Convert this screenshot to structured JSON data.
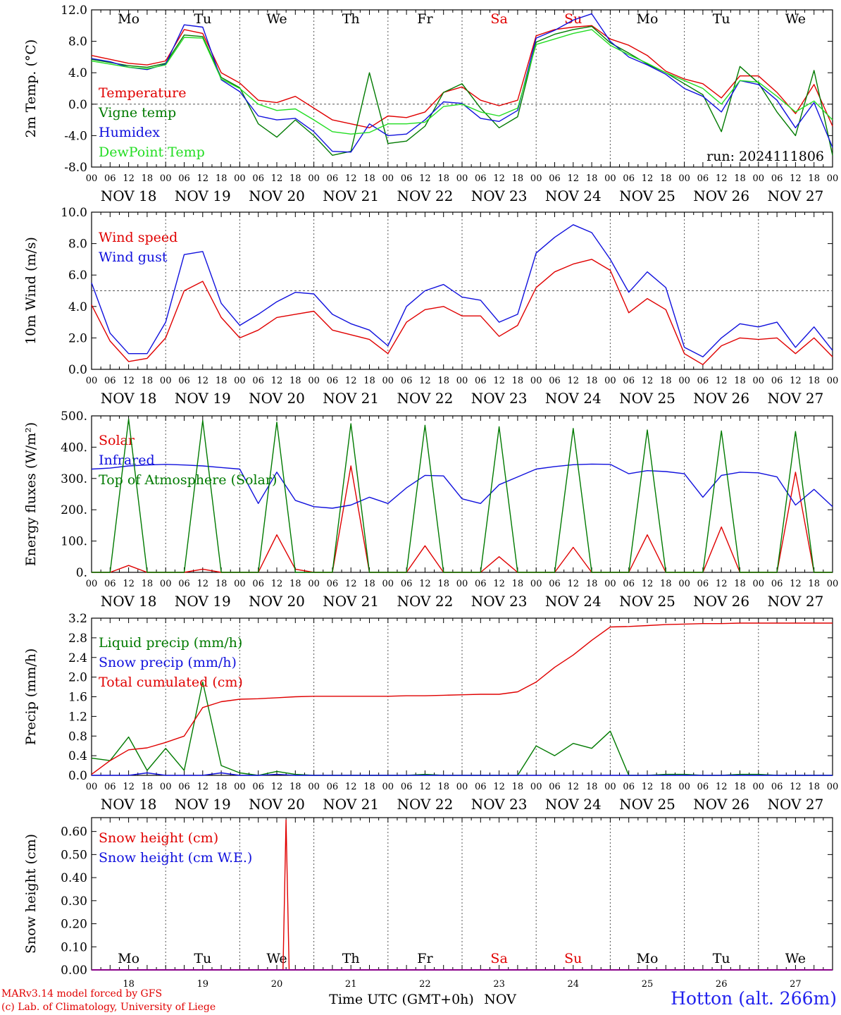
{
  "run_label": "run: 2024111806",
  "footer": {
    "model_line": "MARv3.14 model forced by GFS",
    "lab_line": "(c) Lab. of Climatology, University of Liege",
    "time_axis_label": "Time UTC (GMT+0h)",
    "month_label": "NOV",
    "station": "Hotton (alt. 266m)"
  },
  "days": [
    {
      "weekday": "Mo",
      "date_label": "NOV 18",
      "day_number": "18",
      "weekend": false
    },
    {
      "weekday": "Tu",
      "date_label": "NOV 19",
      "day_number": "19",
      "weekend": false
    },
    {
      "weekday": "We",
      "date_label": "NOV 20",
      "day_number": "20",
      "weekend": false
    },
    {
      "weekday": "Th",
      "date_label": "NOV 21",
      "day_number": "21",
      "weekend": false
    },
    {
      "weekday": "Fr",
      "date_label": "NOV 22",
      "day_number": "22",
      "weekend": false
    },
    {
      "weekday": "Sa",
      "date_label": "NOV 23",
      "day_number": "23",
      "weekend": true
    },
    {
      "weekday": "Su",
      "date_label": "NOV 24",
      "day_number": "24",
      "weekend": true
    },
    {
      "weekday": "Mo",
      "date_label": "NOV 25",
      "day_number": "25",
      "weekend": false
    },
    {
      "weekday": "Tu",
      "date_label": "NOV 26",
      "day_number": "26",
      "weekend": false
    },
    {
      "weekday": "We",
      "date_label": "NOV 27",
      "day_number": "27",
      "weekend": false
    }
  ],
  "hour_ticks": [
    "00",
    "06",
    "12",
    "18"
  ],
  "final_hour_tick": "00",
  "colors": {
    "red": "#e00000",
    "green": "#007a00",
    "blue": "#1010dd",
    "lightgreen": "#22dd22",
    "purple": "#8a008a",
    "grid": "#555555"
  },
  "chart_data": [
    {
      "type": "line",
      "ylabel": "2m Temp. (°C)",
      "ylim": [
        -8,
        12
      ],
      "yticks": [
        "12.0",
        "8.0",
        "4.0",
        "0.0",
        "-4.0",
        "-8.0"
      ],
      "ytick_values": [
        12,
        8,
        4,
        0,
        -4,
        -8
      ],
      "reference_line": 0,
      "show_weekdays": true,
      "x": [
        0,
        6,
        12,
        18,
        24,
        30,
        36,
        42,
        48,
        54,
        60,
        66,
        72,
        78,
        84,
        90,
        96,
        102,
        108,
        114,
        120,
        126,
        132,
        138,
        144,
        150,
        156,
        162,
        168,
        174,
        180,
        186,
        192,
        198,
        204,
        210,
        216,
        222,
        228,
        234,
        240
      ],
      "series": [
        {
          "name": "Temperature",
          "color": "#e00000",
          "values": [
            6.2,
            5.7,
            5.2,
            5.0,
            5.5,
            9.5,
            9.0,
            4.0,
            2.7,
            0.5,
            0.2,
            1.0,
            -0.5,
            -2.0,
            -2.5,
            -3.0,
            -1.5,
            -1.7,
            -1.0,
            1.5,
            2.2,
            0.5,
            -0.2,
            0.5,
            8.7,
            9.5,
            9.8,
            10.0,
            8.3,
            7.5,
            6.2,
            4.2,
            3.2,
            2.6,
            0.8,
            3.6,
            3.6,
            1.5,
            -1.2,
            2.5,
            -2.8
          ]
        },
        {
          "name": "Vigne temp",
          "color": "#007a00",
          "values": [
            5.7,
            5.3,
            4.9,
            4.7,
            5.2,
            8.8,
            8.6,
            3.4,
            2.1,
            -2.5,
            -4.2,
            -2.0,
            -4.0,
            -6.5,
            -6.0,
            4.0,
            -5.0,
            -4.7,
            -2.8,
            1.5,
            2.6,
            -0.5,
            -3.0,
            -1.6,
            7.9,
            8.9,
            9.5,
            9.9,
            7.8,
            6.5,
            5.1,
            4.0,
            2.6,
            1.2,
            -3.5,
            4.8,
            2.7,
            -1.0,
            -4.0,
            4.3,
            -6.5
          ]
        },
        {
          "name": "Humidex",
          "color": "#1010dd",
          "values": [
            5.8,
            5.4,
            4.7,
            4.4,
            5.1,
            10.1,
            9.8,
            3.1,
            1.6,
            -1.5,
            -2.0,
            -1.8,
            -3.5,
            -6.0,
            -6.1,
            -2.5,
            -4.0,
            -3.8,
            -2.0,
            0.3,
            0.1,
            -1.8,
            -2.2,
            -0.8,
            8.4,
            9.4,
            10.7,
            11.5,
            8.0,
            6.0,
            5.0,
            3.8,
            2.0,
            1.0,
            -1.0,
            3.0,
            2.5,
            0.5,
            -3.0,
            0.2,
            -5.5
          ]
        },
        {
          "name": "DewPoint Temp",
          "color": "#22dd22",
          "values": [
            5.5,
            5.1,
            4.7,
            4.5,
            5.0,
            8.5,
            8.4,
            3.2,
            2.0,
            0.0,
            -0.8,
            -0.6,
            -2.0,
            -3.5,
            -3.8,
            -3.6,
            -2.5,
            -2.5,
            -2.3,
            -0.3,
            0.0,
            -1.0,
            -1.5,
            -0.5,
            7.6,
            8.3,
            9.0,
            9.5,
            7.5,
            6.3,
            5.2,
            4.0,
            3.0,
            2.0,
            0.0,
            3.0,
            2.8,
            1.0,
            -1.0,
            0.4,
            -2.0
          ]
        }
      ]
    },
    {
      "type": "line",
      "ylabel": "10m Wind (m/s)",
      "ylim": [
        0,
        10
      ],
      "yticks": [
        "10.0",
        "8.0",
        "6.0",
        "4.0",
        "2.0",
        "0.0"
      ],
      "ytick_values": [
        10,
        8,
        6,
        4,
        2,
        0
      ],
      "reference_line": 5,
      "show_weekdays": false,
      "x": [
        0,
        6,
        12,
        18,
        24,
        30,
        36,
        42,
        48,
        54,
        60,
        66,
        72,
        78,
        84,
        90,
        96,
        102,
        108,
        114,
        120,
        126,
        132,
        138,
        144,
        150,
        156,
        162,
        168,
        174,
        180,
        186,
        192,
        198,
        204,
        210,
        216,
        222,
        228,
        234,
        240
      ],
      "series": [
        {
          "name": "Wind speed",
          "color": "#e00000",
          "values": [
            4.1,
            1.8,
            0.5,
            0.7,
            2.0,
            5.0,
            5.6,
            3.3,
            2.0,
            2.5,
            3.3,
            3.5,
            3.7,
            2.5,
            2.2,
            1.9,
            1.0,
            3.0,
            3.8,
            4.0,
            3.4,
            3.4,
            2.1,
            2.8,
            5.2,
            6.2,
            6.7,
            7.0,
            6.3,
            3.6,
            4.5,
            3.8,
            1.0,
            0.3,
            1.5,
            2.0,
            1.9,
            2.0,
            1.0,
            2.0,
            0.8
          ]
        },
        {
          "name": "Wind gust",
          "color": "#1010dd",
          "values": [
            5.5,
            2.3,
            1.0,
            1.0,
            3.0,
            7.3,
            7.5,
            4.2,
            2.8,
            3.5,
            4.3,
            4.9,
            4.8,
            3.5,
            2.9,
            2.5,
            1.5,
            4.0,
            5.0,
            5.4,
            4.6,
            4.4,
            3.0,
            3.5,
            7.4,
            8.4,
            9.2,
            8.7,
            7.0,
            4.9,
            6.2,
            5.2,
            1.4,
            0.8,
            2.0,
            2.9,
            2.7,
            3.0,
            1.4,
            2.7,
            1.2
          ]
        }
      ]
    },
    {
      "type": "line",
      "ylabel": "Energy fluxes (W/m²)",
      "ylim": [
        0,
        500
      ],
      "yticks": [
        "500.",
        "400.",
        "300.",
        "200.",
        "100.",
        "0."
      ],
      "ytick_values": [
        500,
        400,
        300,
        200,
        100,
        0
      ],
      "reference_line": null,
      "show_weekdays": false,
      "x": [
        0,
        6,
        12,
        18,
        24,
        30,
        36,
        42,
        48,
        54,
        60,
        66,
        72,
        78,
        84,
        90,
        96,
        102,
        108,
        114,
        120,
        126,
        132,
        138,
        144,
        150,
        156,
        162,
        168,
        174,
        180,
        186,
        192,
        198,
        204,
        210,
        216,
        222,
        228,
        234,
        240
      ],
      "series": [
        {
          "name": "Solar",
          "color": "#e00000",
          "values": [
            0,
            0,
            22,
            0,
            0,
            0,
            10,
            0,
            0,
            0,
            120,
            10,
            0,
            0,
            340,
            0,
            0,
            0,
            85,
            0,
            0,
            0,
            50,
            0,
            0,
            0,
            80,
            0,
            0,
            0,
            120,
            0,
            0,
            0,
            145,
            0,
            0,
            0,
            320,
            0,
            0
          ]
        },
        {
          "name": "Infrared",
          "color": "#1010dd",
          "values": [
            330,
            333,
            340,
            343,
            345,
            343,
            340,
            335,
            330,
            220,
            320,
            230,
            210,
            205,
            215,
            240,
            220,
            270,
            310,
            308,
            235,
            220,
            280,
            305,
            330,
            338,
            344,
            346,
            345,
            315,
            325,
            322,
            315,
            240,
            310,
            320,
            318,
            305,
            215,
            265,
            210
          ]
        },
        {
          "name": "Top of Atmosphere (Solar)",
          "color": "#007a00",
          "values": [
            0,
            0,
            490,
            0,
            0,
            0,
            485,
            0,
            0,
            0,
            480,
            0,
            0,
            0,
            475,
            0,
            0,
            0,
            470,
            0,
            0,
            0,
            465,
            0,
            0,
            0,
            460,
            0,
            0,
            0,
            455,
            0,
            0,
            0,
            452,
            0,
            0,
            0,
            450,
            0,
            0
          ]
        }
      ]
    },
    {
      "type": "line",
      "ylabel": "Precip (mm/h)",
      "ylim": [
        0,
        3.2
      ],
      "yticks": [
        "3.2",
        "2.8",
        "2.4",
        "2.0",
        "1.6",
        "1.2",
        "0.8",
        "0.4",
        "0.0"
      ],
      "ytick_values": [
        3.2,
        2.8,
        2.4,
        2.0,
        1.6,
        1.2,
        0.8,
        0.4,
        0.0
      ],
      "reference_line": null,
      "show_weekdays": false,
      "x": [
        0,
        6,
        12,
        18,
        24,
        30,
        36,
        42,
        48,
        54,
        60,
        66,
        72,
        78,
        84,
        90,
        96,
        102,
        108,
        114,
        120,
        126,
        132,
        138,
        144,
        150,
        156,
        162,
        168,
        174,
        180,
        186,
        192,
        198,
        204,
        210,
        216,
        222,
        228,
        234,
        240
      ],
      "series": [
        {
          "name": "Liquid precip (mm/h)",
          "color": "#007a00",
          "values": [
            0.35,
            0.3,
            0.78,
            0.1,
            0.55,
            0.1,
            1.9,
            0.2,
            0.05,
            0.0,
            0.08,
            0.02,
            0.0,
            0.0,
            0.0,
            0.0,
            0.0,
            0.0,
            0.02,
            0.0,
            0.0,
            0.0,
            0.0,
            0.0,
            0.6,
            0.4,
            0.65,
            0.55,
            0.9,
            0.0,
            0.0,
            0.02,
            0.02,
            0.0,
            0.0,
            0.02,
            0.02,
            0.0,
            0.0,
            0.0,
            0.0
          ]
        },
        {
          "name": "Snow precip (mm/h)",
          "color": "#1010dd",
          "values": [
            0,
            0,
            0,
            0.05,
            0,
            0,
            0,
            0.05,
            0,
            0,
            0.02,
            0,
            0,
            0,
            0,
            0,
            0,
            0,
            0,
            0,
            0,
            0,
            0,
            0,
            0,
            0,
            0,
            0,
            0,
            0,
            0,
            0,
            0,
            0,
            0,
            0,
            0,
            0,
            0,
            0,
            0
          ]
        },
        {
          "name": "Total cumulated (cm)",
          "color": "#e00000",
          "values": [
            0.02,
            0.3,
            0.52,
            0.56,
            0.67,
            0.8,
            1.38,
            1.5,
            1.55,
            1.56,
            1.58,
            1.6,
            1.61,
            1.61,
            1.61,
            1.61,
            1.61,
            1.62,
            1.62,
            1.63,
            1.64,
            1.65,
            1.65,
            1.7,
            1.9,
            2.2,
            2.45,
            2.75,
            3.02,
            3.03,
            3.05,
            3.07,
            3.08,
            3.09,
            3.09,
            3.1,
            3.1,
            3.1,
            3.1,
            3.1,
            3.1
          ]
        }
      ]
    },
    {
      "type": "line",
      "ylabel": "Snow height (cm)",
      "ylim": [
        0,
        0.66
      ],
      "yticks": [
        "0.60",
        "0.50",
        "0.40",
        "0.30",
        "0.20",
        "0.10",
        "0.00"
      ],
      "ytick_values": [
        0.6,
        0.5,
        0.4,
        0.3,
        0.2,
        0.1,
        0.0
      ],
      "reference_line": null,
      "show_weekdays": true,
      "x": [
        0,
        24,
        48,
        62,
        63,
        64,
        72,
        96,
        120,
        144,
        168,
        192,
        216,
        240
      ],
      "series": [
        {
          "name": "Snow height (cm)",
          "color": "#e00000",
          "values": [
            0,
            0,
            0,
            0,
            0.65,
            0,
            0,
            0,
            0,
            0,
            0,
            0,
            0,
            0
          ]
        },
        {
          "name": "Snow height (cm W.E.)",
          "color": "#1010dd",
          "values": [
            0,
            0,
            0,
            0,
            0,
            0,
            0,
            0,
            0,
            0,
            0,
            0,
            0,
            0
          ]
        }
      ]
    }
  ]
}
